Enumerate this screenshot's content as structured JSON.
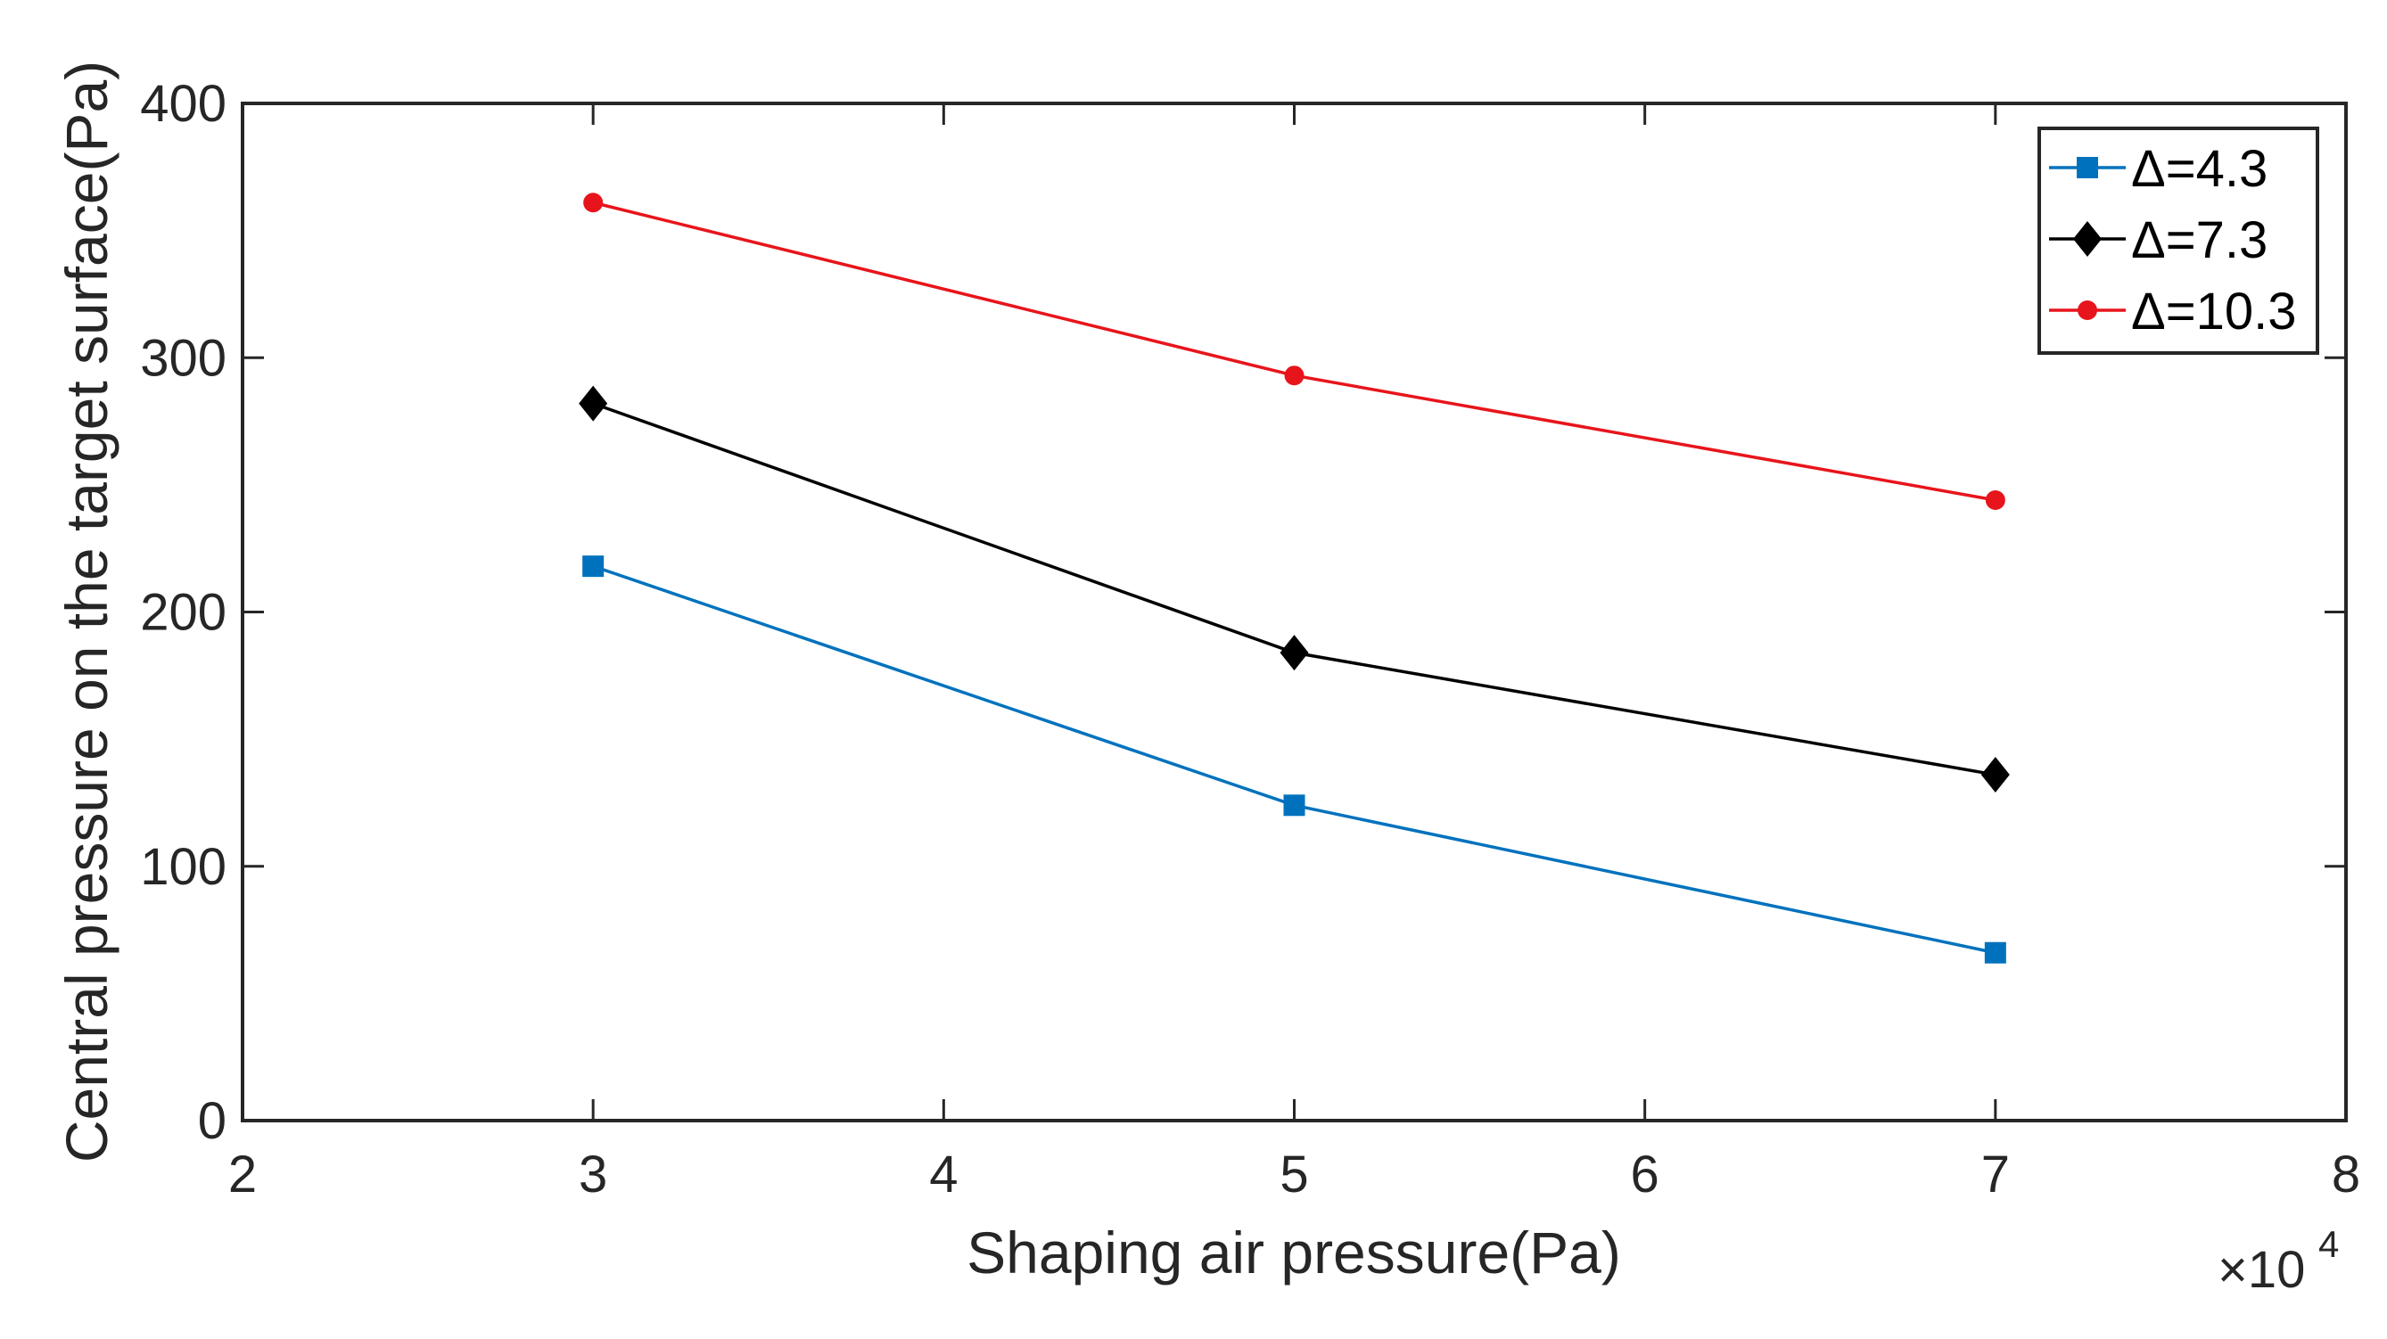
{
  "chart_data": {
    "type": "line",
    "title": "",
    "xlabel": "Shaping air pressure(Pa)",
    "ylabel": "Central pressure on the target surface(Pa)",
    "x_multiplier_label": "×10",
    "x_multiplier_exponent": "4",
    "xlim": [
      2,
      8
    ],
    "ylim": [
      0,
      400
    ],
    "xticks": [
      2,
      3,
      4,
      5,
      6,
      7,
      8
    ],
    "xtick_labels": [
      "2",
      "3",
      "4",
      "5",
      "6",
      "7",
      "8"
    ],
    "yticks": [
      0,
      100,
      200,
      300,
      400
    ],
    "ytick_labels": [
      "0",
      "100",
      "200",
      "300",
      "400"
    ],
    "grid": false,
    "legend_position": "top-right",
    "x": [
      3,
      5,
      7
    ],
    "series": [
      {
        "name": "Δ=4.3",
        "values": [
          218,
          124,
          66
        ],
        "color": "#0072BD",
        "marker": "square"
      },
      {
        "name": "Δ=7.3",
        "values": [
          282,
          184,
          136
        ],
        "color": "#000000",
        "marker": "diamond"
      },
      {
        "name": "Δ=10.3",
        "values": [
          361,
          293,
          244
        ],
        "color": "#E8141B",
        "marker": "circle"
      }
    ]
  }
}
